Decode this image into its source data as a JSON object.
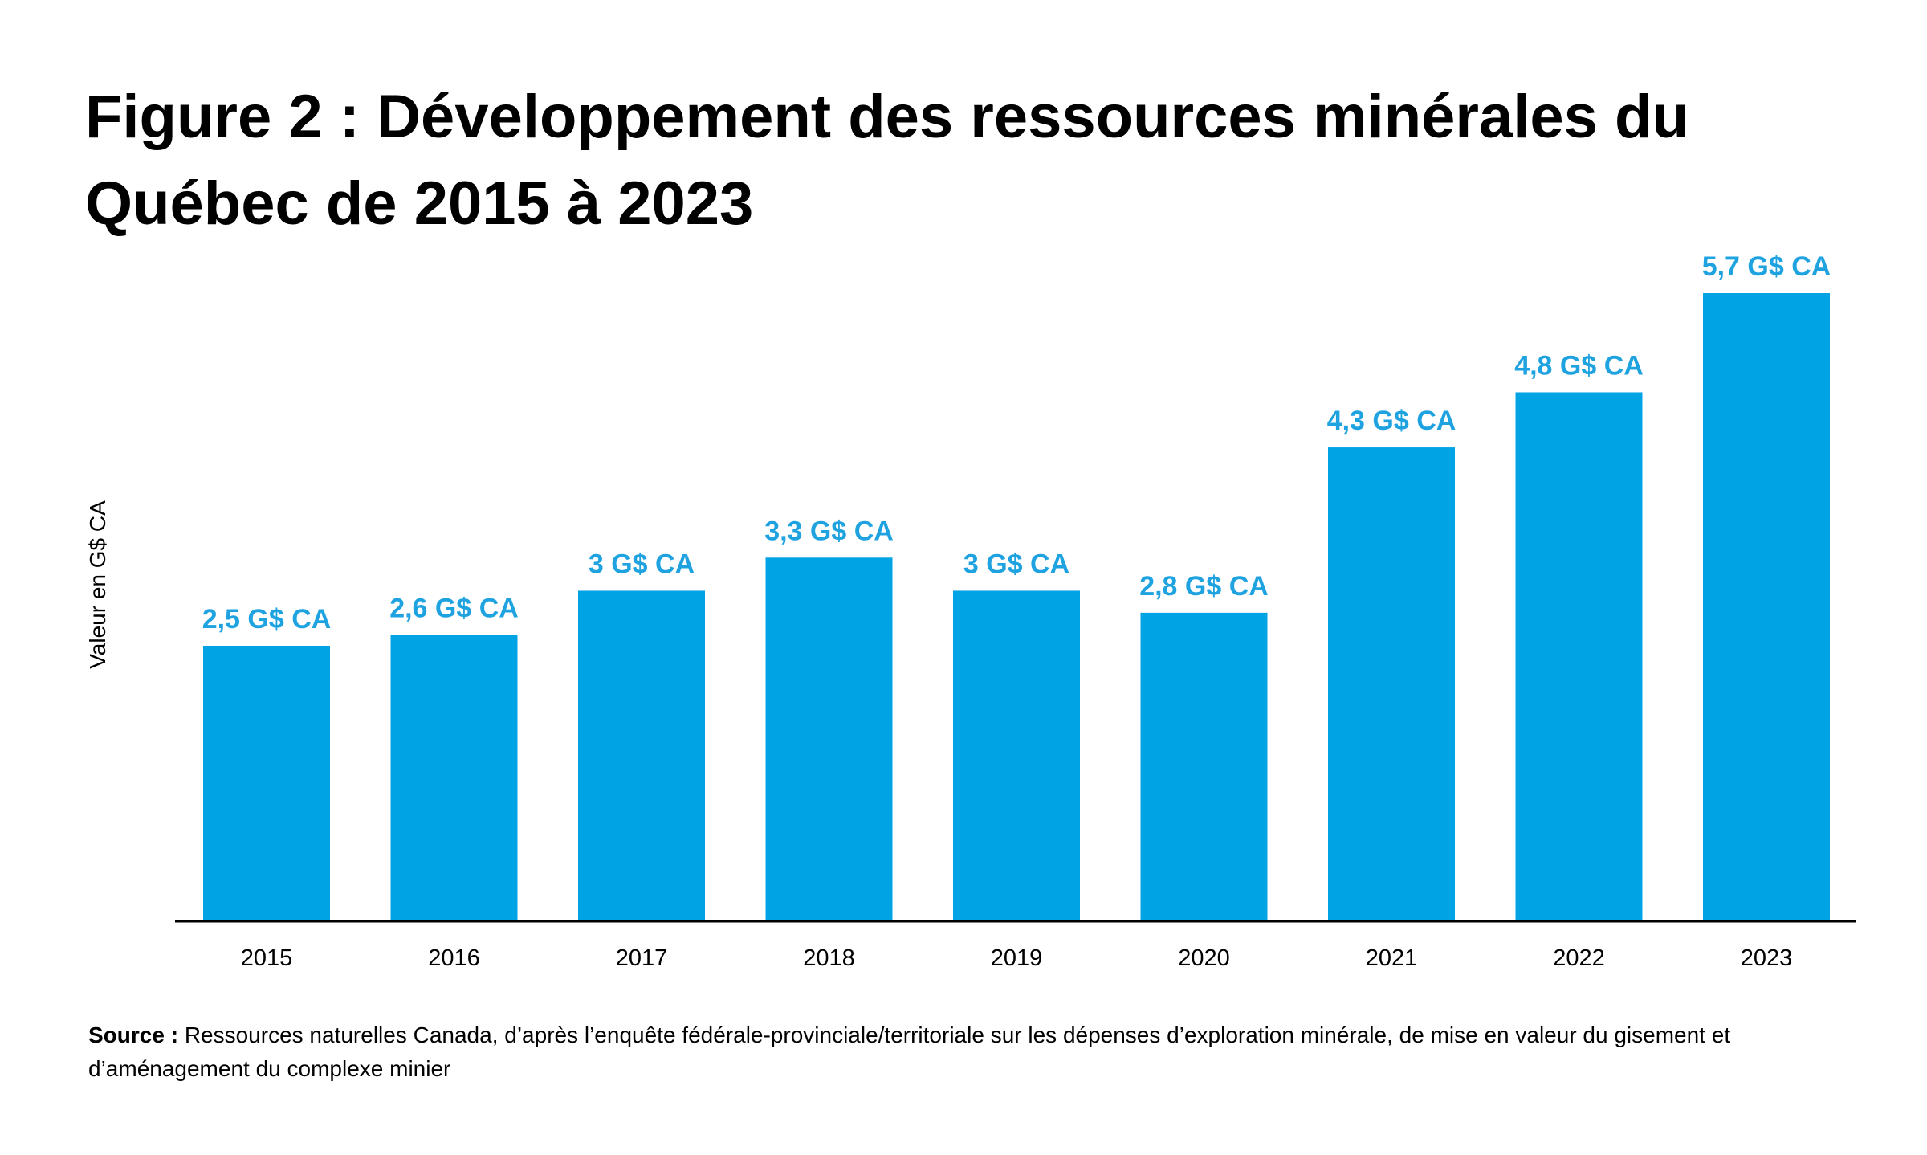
{
  "title": {
    "prefix": "Figure 2 :",
    "text": "Développement des ressources minérales du Québec de 2015 à 2023"
  },
  "source": {
    "label": "Source :",
    "text": "Ressources naturelles Canada, d’après l’enquête fédérale-provinciale/territoriale sur les dépenses d’exploration minérale, de mise en valeur du gisement et d’aménagement du complexe minier"
  },
  "colors": {
    "bar": "#00A3E4",
    "data_label": "#1FA3E0",
    "axis": "#000000",
    "text": "#000000"
  },
  "chart_data": {
    "type": "bar",
    "title": "Développement des ressources minérales du Québec de 2015 à 2023",
    "xlabel": "",
    "ylabel": "Valeur en G$ CA",
    "ylim": [
      0,
      5.7
    ],
    "grid": false,
    "categories": [
      "2015",
      "2016",
      "2017",
      "2018",
      "2019",
      "2020",
      "2021",
      "2022",
      "2023"
    ],
    "values": [
      2.5,
      2.6,
      3.0,
      3.3,
      3.0,
      2.8,
      4.3,
      4.8,
      5.7
    ],
    "data_labels": [
      "2,5 G$ CA",
      "2,6 G$ CA",
      "3 G$ CA",
      "3,3 G$ CA",
      "3 G$ CA",
      "2,8 G$ CA",
      "4,3 G$ CA",
      "4,8 G$ CA",
      "5,7 G$ CA"
    ]
  }
}
